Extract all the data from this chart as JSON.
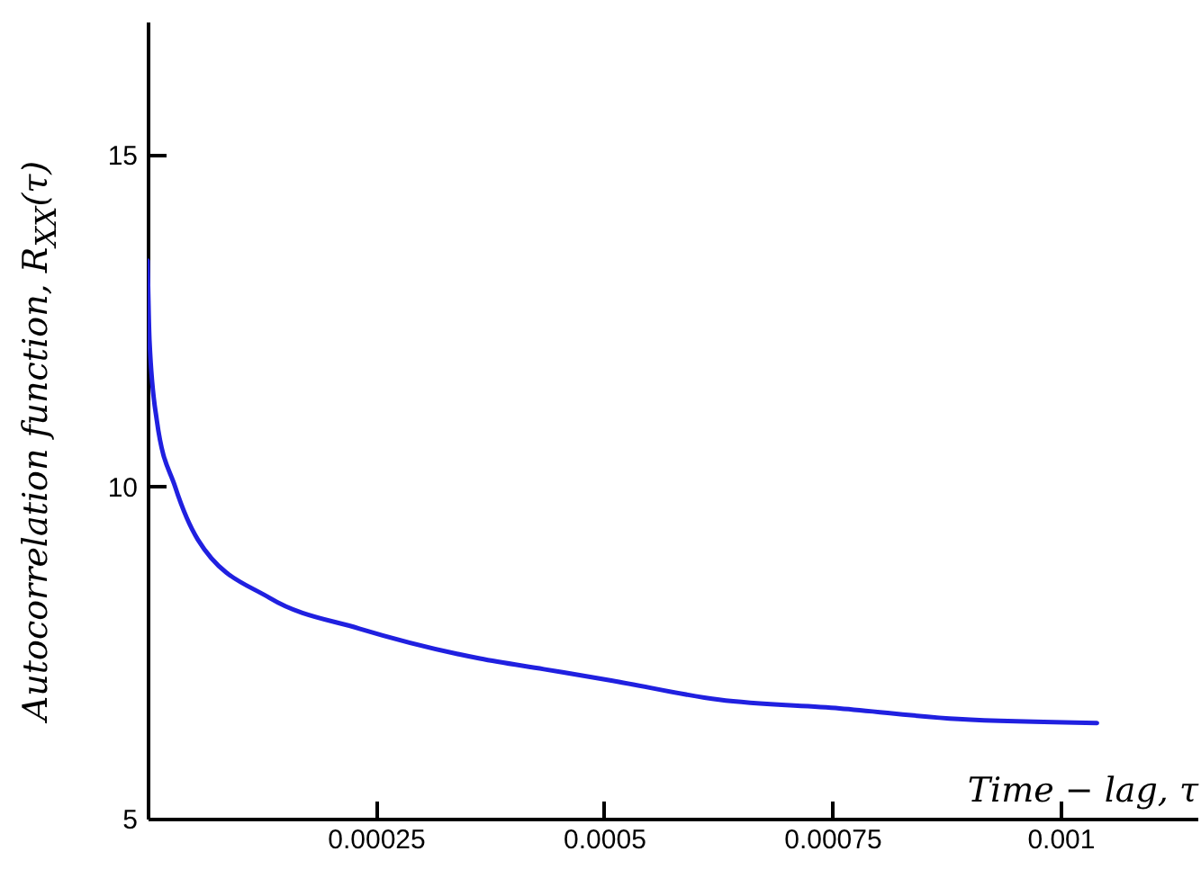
{
  "chart_data": {
    "type": "line",
    "xlabel": "Time − lag, τ",
    "ylabel": "Autocorrelation function, R$_{XX}$(τ)",
    "x": [
      0,
      2e-06,
      1e-05,
      3e-05,
      5.5e-05,
      0.000134,
      0.000232,
      0.000364,
      0.000434,
      0.000508,
      0.000626,
      0.000758,
      0.000888,
      0.00104
    ],
    "series": [
      {
        "color": "#2020e0",
        "values": [
          13.4,
          12.2,
          11.0,
          10.0,
          9.2,
          8.32,
          7.86,
          7.41,
          7.25,
          7.08,
          6.79,
          6.66,
          6.5,
          6.44
        ]
      }
    ],
    "xlim": [
      0,
      0.00115
    ],
    "xticks": [
      0.00025,
      0.0005,
      0.00075,
      0.001
    ],
    "ylim": [
      5,
      17
    ],
    "yticks": [
      5,
      10,
      15
    ],
    "grid": false,
    "marker": "none",
    "line_style": "solid"
  }
}
